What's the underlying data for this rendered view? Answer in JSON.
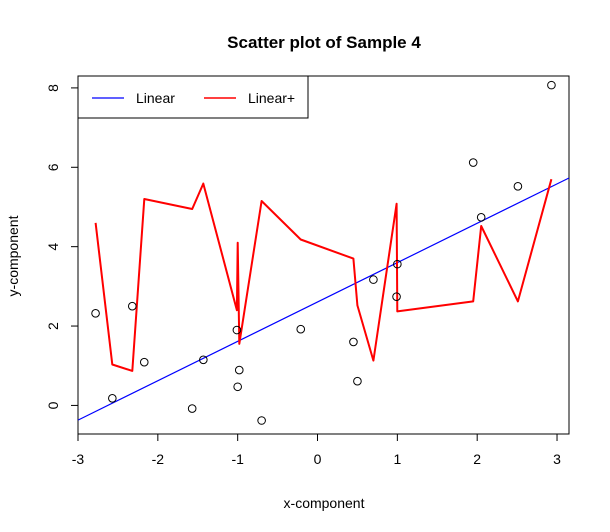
{
  "chart_data": {
    "type": "scatter",
    "title": "Scatter plot of Sample 4",
    "xlabel": "x-component",
    "ylabel": "y-component",
    "xlim": [
      -3.0,
      3.15
    ],
    "ylim": [
      -0.72,
      8.3
    ],
    "x_ticks": [
      -3,
      -2,
      -1,
      0,
      1,
      2,
      3
    ],
    "y_ticks": [
      0,
      2,
      4,
      6,
      8
    ],
    "grid": false,
    "legend_position": "top-left",
    "points": [
      {
        "x": -2.78,
        "y": 2.32
      },
      {
        "x": -2.57,
        "y": 0.18
      },
      {
        "x": -2.32,
        "y": 2.5
      },
      {
        "x": -2.17,
        "y": 1.09
      },
      {
        "x": -1.57,
        "y": -0.08
      },
      {
        "x": -1.43,
        "y": 1.15
      },
      {
        "x": -1.01,
        "y": 1.9
      },
      {
        "x": -1.0,
        "y": 0.47
      },
      {
        "x": -0.98,
        "y": 0.89
      },
      {
        "x": -0.7,
        "y": -0.38
      },
      {
        "x": -0.21,
        "y": 1.92
      },
      {
        "x": 0.45,
        "y": 1.6
      },
      {
        "x": 0.5,
        "y": 0.61
      },
      {
        "x": 0.7,
        "y": 3.17
      },
      {
        "x": 0.99,
        "y": 2.74
      },
      {
        "x": 1.0,
        "y": 3.56
      },
      {
        "x": 1.95,
        "y": 6.12
      },
      {
        "x": 2.05,
        "y": 4.74
      },
      {
        "x": 2.51,
        "y": 5.52
      },
      {
        "x": 2.93,
        "y": 8.07
      }
    ],
    "series": [
      {
        "name": "Linear",
        "color": "#0000ff",
        "x": [
          -3.0,
          3.15
        ],
        "y": [
          -0.37,
          5.73
        ]
      },
      {
        "name": "Linear+",
        "color": "#ff0000",
        "x": [
          -2.78,
          -2.57,
          -2.32,
          -2.17,
          -1.57,
          -1.43,
          -1.01,
          -1.0,
          -0.98,
          -0.7,
          -0.21,
          0.45,
          0.5,
          0.7,
          0.99,
          1.0,
          1.95,
          2.05,
          2.51,
          2.93
        ],
        "y": [
          4.6,
          1.03,
          0.87,
          5.2,
          4.95,
          5.59,
          2.4,
          4.1,
          1.55,
          5.15,
          4.18,
          3.7,
          2.52,
          1.13,
          5.08,
          2.37,
          2.62,
          4.52,
          2.62,
          5.7
        ]
      }
    ]
  }
}
